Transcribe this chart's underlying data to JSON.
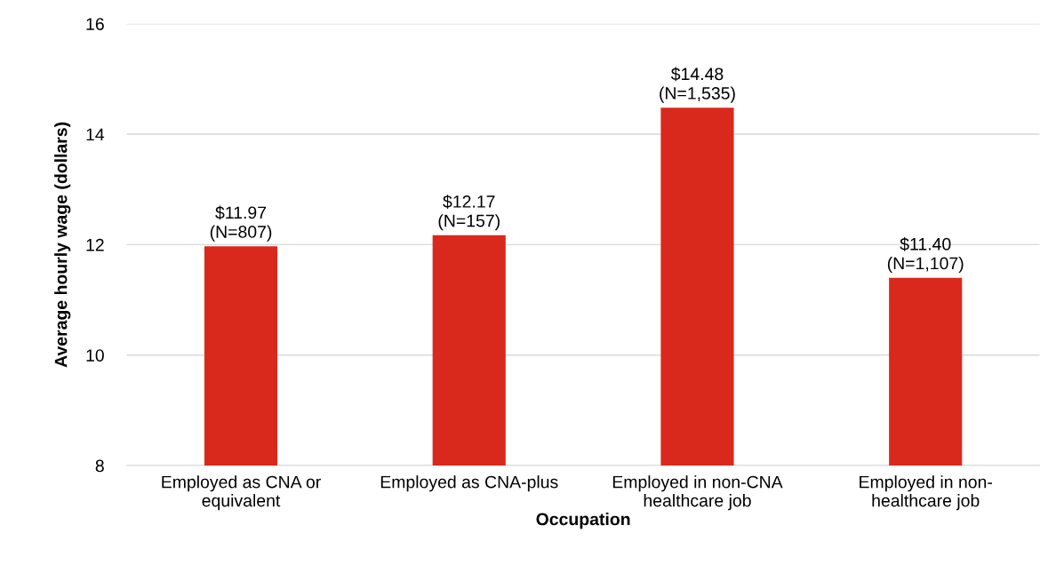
{
  "chart_data": {
    "type": "bar",
    "categories": [
      "Employed as CNA or\nequivalent",
      "Employed as CNA-plus",
      "Employed in non-CNA\nhealthcare job",
      "Employed in non-\nhealthcare job"
    ],
    "values": [
      11.97,
      12.17,
      14.48,
      11.4
    ],
    "value_labels": [
      "$11.97\n(N=807)",
      "$12.17\n(N=157)",
      "$14.48\n(N=1,535)",
      "$11.40\n(N=1,107)"
    ],
    "color": "#d9291c",
    "xlabel": "Occupation",
    "ylabel": "Average hourly wage (dollars)",
    "ylim": [
      8,
      16
    ],
    "yticks": [
      8,
      10,
      12,
      14,
      16
    ],
    "grid": "y"
  }
}
